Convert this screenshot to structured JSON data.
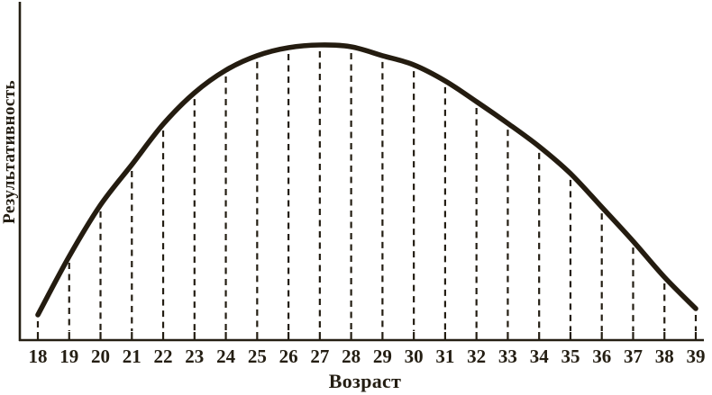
{
  "chart_data": {
    "type": "line",
    "title": "",
    "xlabel": "Возраст",
    "ylabel": "Результативность",
    "x": [
      18,
      19,
      20,
      21,
      22,
      23,
      24,
      25,
      26,
      27,
      28,
      29,
      30,
      31,
      32,
      33,
      34,
      35,
      36,
      37,
      38,
      39
    ],
    "series": [
      {
        "name": "Результативность",
        "values": [
          8.5,
          28.2,
          45.5,
          59.1,
          72.7,
          83.3,
          90.9,
          95.8,
          98.5,
          99.4,
          98.8,
          95.8,
          92.7,
          87.3,
          80.3,
          73.0,
          65.2,
          56.1,
          44.8,
          33.3,
          21.2,
          10.6
        ]
      }
    ],
    "ylim": [
      0,
      105
    ],
    "grid": false,
    "legend": "none",
    "peak_x": 27,
    "annotation_style": "dashed vertical drop lines from curve to x-axis at every age tick",
    "ink_color": "#241e13",
    "curve_color": "#241c10",
    "background_color": "#ffffff"
  }
}
